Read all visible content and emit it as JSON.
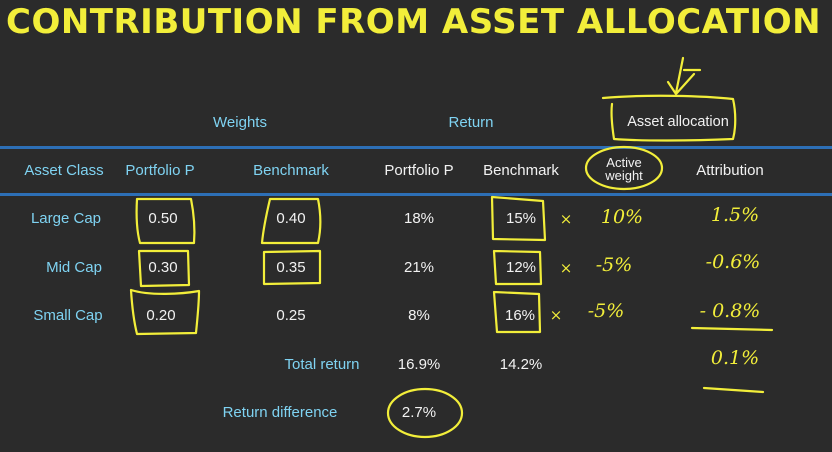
{
  "title": "CONTRIBUTION FROM ASSET ALLOCATION",
  "group_headers": {
    "weights": "Weights",
    "return": "Return",
    "asset_allocation": "Asset allocation"
  },
  "columns": {
    "asset_class": "Asset Class",
    "portfolio_w": "Portfolio P",
    "benchmark_w": "Benchmark",
    "portfolio_r": "Portfolio P",
    "benchmark_r": "Benchmark",
    "active_weight_1": "Active",
    "active_weight_2": "weight",
    "attribution": "Attribution"
  },
  "rows": [
    {
      "asset_class": "Large Cap",
      "portfolio_w": "0.50",
      "benchmark_w": "0.40",
      "portfolio_r": "18%",
      "benchmark_r": "15%",
      "times": "×",
      "active_weight": "10%",
      "attribution": "1.5%"
    },
    {
      "asset_class": "Mid Cap",
      "portfolio_w": "0.30",
      "benchmark_w": "0.35",
      "portfolio_r": "21%",
      "benchmark_r": "12%",
      "times": "×",
      "active_weight": "-5%",
      "attribution": "-0.6%"
    },
    {
      "asset_class": "Small Cap",
      "portfolio_w": "0.20",
      "benchmark_w": "0.25",
      "portfolio_r": "8%",
      "benchmark_r": "16%",
      "times": "×",
      "active_weight": "-5%",
      "attribution": "- 0.8%"
    }
  ],
  "totals": {
    "label": "Total return",
    "portfolio_r": "16.9%",
    "benchmark_r": "14.2%",
    "attribution": "0.1%"
  },
  "difference": {
    "label": "Return difference",
    "value": "2.7%"
  },
  "colors": {
    "background": "#2b2b2b",
    "title": "#f2ee3a",
    "header_text": "#7fd3f2",
    "rule": "#2d6fb6",
    "ink": "#f2ee3a"
  }
}
